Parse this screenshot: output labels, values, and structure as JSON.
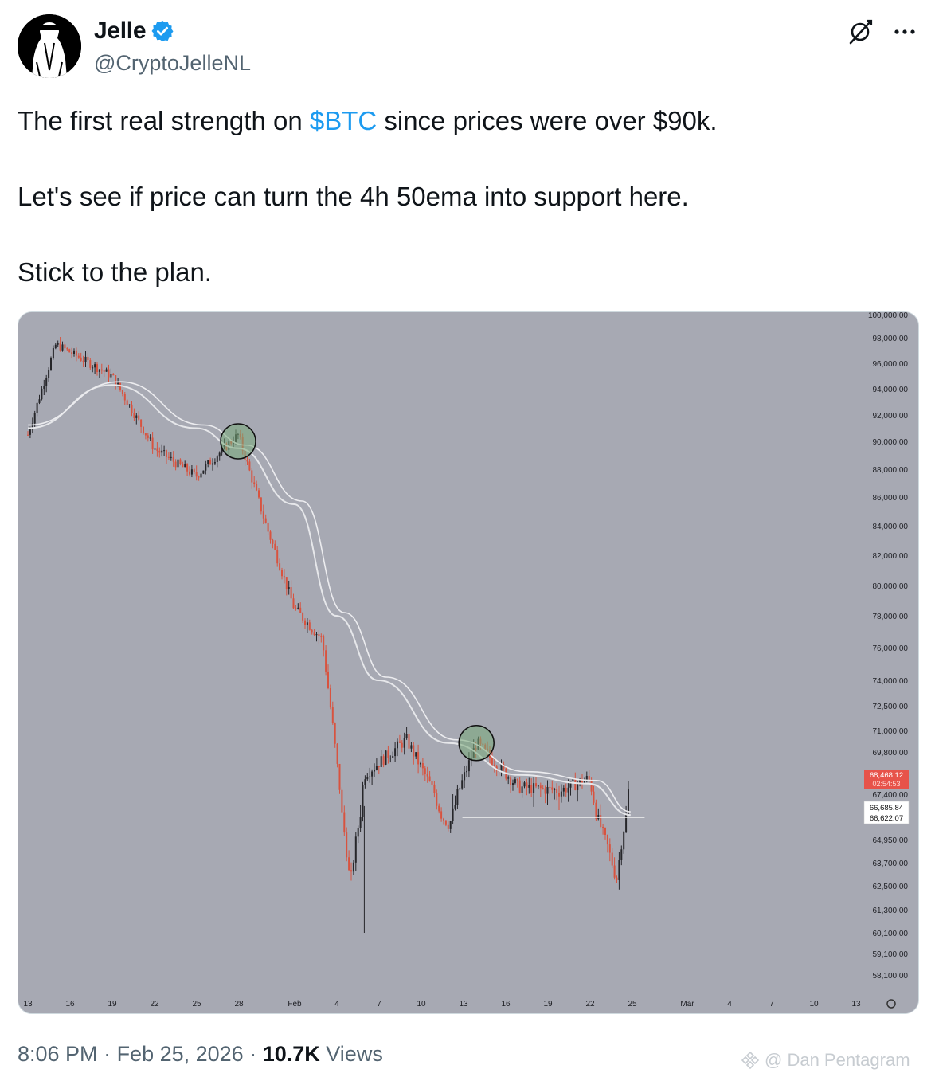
{
  "author": {
    "display_name": "Jelle",
    "handle": "@CryptoJelleNL"
  },
  "tweet": {
    "line1_before": "The first real strength on ",
    "cashtag": "$BTC",
    "line1_after": " since prices were over $90k.",
    "line2": "Let's see if price can turn the 4h 50ema into support here.",
    "line3": "Stick to the plan."
  },
  "footer": {
    "time": "8:06 PM",
    "date": "Feb 25, 2026",
    "views_count": "10.7K",
    "views_label": "Views",
    "separator": " · "
  },
  "watermark": "@ Dan Pentagram",
  "icons": {
    "grok": "grok-icon",
    "more": "more-icon",
    "verified": "verified-badge-icon"
  },
  "colors": {
    "accent": "#1d9bf0",
    "chart_bg": "#a7a9b3",
    "candle_up": "#26262a",
    "candle_down": "#d8533f",
    "price_tag": "#e7534a"
  },
  "chart_data": {
    "type": "candlestick",
    "price_axis_ticks": [
      "100,000.00",
      "98,000.00",
      "96,000.00",
      "94,000.00",
      "92,000.00",
      "90,000.00",
      "88,000.00",
      "86,000.00",
      "84,000.00",
      "82,000.00",
      "80,000.00",
      "78,000.00",
      "76,000.00",
      "74,000.00",
      "72,500.00",
      "71,000.00",
      "69,800.00",
      "67,400.00",
      "64,950.00",
      "63,700.00",
      "62,500.00",
      "61,300.00",
      "60,100.00",
      "59,100.00",
      "58,100.00"
    ],
    "time_axis_ticks": [
      "13",
      "16",
      "19",
      "22",
      "25",
      "28",
      "Feb",
      "4",
      "7",
      "10",
      "13",
      "16",
      "19",
      "22",
      "25",
      "Mar",
      "4",
      "7",
      "10",
      "13"
    ],
    "current_price_label": "68,468.12",
    "countdown_label": "02:54:53",
    "ema_label_1": "66,685.84",
    "ema_label_2": "66,622.07",
    "support_level": 66622,
    "key_points": [
      {
        "date": "Jan 13",
        "price": 90500
      },
      {
        "date": "Jan 15",
        "price": 97500
      },
      {
        "date": "Jan 19",
        "price": 95000
      },
      {
        "date": "Jan 22",
        "price": 89500
      },
      {
        "date": "Jan 25",
        "price": 87500
      },
      {
        "date": "Jan 28",
        "price": 90500
      },
      {
        "date": "Jan 30",
        "price": 84000
      },
      {
        "date": "Feb 1",
        "price": 78500
      },
      {
        "date": "Feb 3",
        "price": 76500
      },
      {
        "date": "Feb 5",
        "price": 62500
      },
      {
        "date": "Feb 6",
        "price": 68500
      },
      {
        "date": "Feb 9",
        "price": 70500
      },
      {
        "date": "Feb 12",
        "price": 66000
      },
      {
        "date": "Feb 14",
        "price": 70300
      },
      {
        "date": "Feb 17",
        "price": 67800
      },
      {
        "date": "Feb 20",
        "price": 67600
      },
      {
        "date": "Feb 22",
        "price": 68300
      },
      {
        "date": "Feb 24",
        "price": 62800
      },
      {
        "date": "Feb 25",
        "price": 68468
      }
    ],
    "ema_4h_50": [
      {
        "date": "Jan 13",
        "price": 91000
      },
      {
        "date": "Jan 19",
        "price": 94300
      },
      {
        "date": "Jan 25",
        "price": 91000
      },
      {
        "date": "Jan 28",
        "price": 89500
      },
      {
        "date": "Feb 1",
        "price": 85500
      },
      {
        "date": "Feb 4",
        "price": 78000
      },
      {
        "date": "Feb 7",
        "price": 74000
      },
      {
        "date": "Feb 12",
        "price": 70300
      },
      {
        "date": "Feb 17",
        "price": 68500
      },
      {
        "date": "Feb 22",
        "price": 68000
      },
      {
        "date": "Feb 25",
        "price": 66700
      }
    ],
    "highlight_circles": [
      {
        "date": "Jan 28",
        "price": 90000
      },
      {
        "date": "Feb 14",
        "price": 70300
      }
    ]
  }
}
